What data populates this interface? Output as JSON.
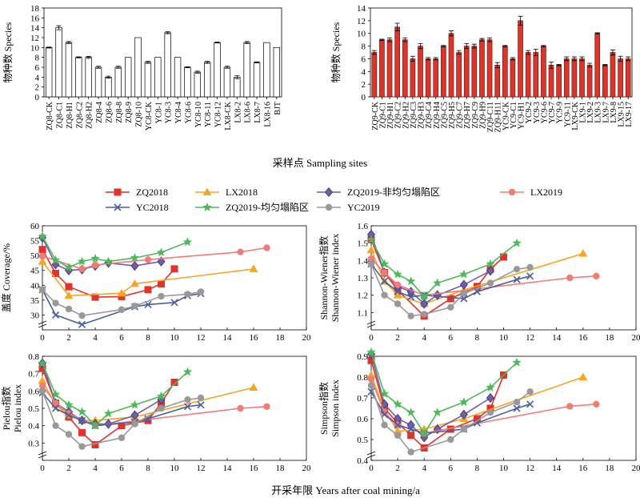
{
  "figure": {
    "sampling_title": "采样点 Sampling sites",
    "years_title": "开采年限 Years after coal mining/a"
  },
  "colors": {
    "ZQ2018": "#e23229",
    "LX2018": "#f5a623",
    "ZQ2019": "#6f5fa8",
    "LX2019": "#f07c78",
    "YC2018": "#4a5fa0",
    "ZQ2019_even": "#4fb85a",
    "YC2019": "#999999",
    "bar_red": "#d9362b"
  },
  "legend": [
    {
      "key": "ZQ2018",
      "label": "ZQ2018",
      "marker": "square"
    },
    {
      "key": "LX2018",
      "label": "LX2018",
      "marker": "triangle"
    },
    {
      "key": "ZQ2019",
      "label": "ZQ2019-非均匀塌陷区",
      "marker": "diamond"
    },
    {
      "key": "LX2019",
      "label": "LX2019",
      "marker": "circle"
    },
    {
      "key": "YC2018",
      "label": "YC2018",
      "marker": "x"
    },
    {
      "key": "ZQ2019_even",
      "label": "ZQ2019-均匀塌陷区",
      "marker": "star"
    },
    {
      "key": "YC2019",
      "label": "YC2019",
      "marker": "circle"
    }
  ],
  "chart_data": [
    {
      "type": "bar",
      "id": "bar2018",
      "ylabel": "物种数 Species",
      "ylim": [
        0,
        18
      ],
      "yticks": [
        0,
        2,
        4,
        6,
        8,
        10,
        12,
        14,
        16,
        18
      ],
      "fill": "white",
      "categories": [
        "ZQ8-CK",
        "ZQ8-C1",
        "ZQ8-H1",
        "ZQ8-C2",
        "ZQ8-H2",
        "ZQ8-4",
        "ZQ8-6",
        "ZQ8-8",
        "ZQ8-9",
        "ZQ8-10",
        "YC8-CK",
        "YC8-1",
        "YC8-3",
        "YC8-4",
        "YC8-6",
        "YC8-10",
        "YC8-11",
        "YC8-12",
        "LX8-CK",
        "LX8-2",
        "LX8-6",
        "LX8-7",
        "LX8-16",
        "BJT"
      ],
      "values": [
        10,
        14,
        11,
        8,
        8,
        6,
        4,
        6,
        8,
        12,
        7,
        8,
        13,
        8,
        6,
        5,
        7,
        11,
        6,
        4,
        11,
        7,
        11,
        10
      ],
      "errors": [
        0.1,
        0.4,
        0.2,
        0.1,
        0.2,
        0.2,
        0.2,
        0.2,
        0,
        0,
        0.2,
        0,
        0.2,
        0,
        0.1,
        0.2,
        0.2,
        0.1,
        0.2,
        0.3,
        0.2,
        0.1,
        0,
        0
      ]
    },
    {
      "type": "bar",
      "id": "bar2019",
      "ylabel": "物种数 Species",
      "ylim": [
        0,
        14
      ],
      "yticks": [
        0,
        2,
        4,
        6,
        8,
        10,
        12,
        14
      ],
      "fill": "red",
      "categories": [
        "ZQ9-CK",
        "ZQ9-C1",
        "ZQ9-H1",
        "ZQ9-C2",
        "ZQ9-H2",
        "ZQ9-C3",
        "ZQ9-H3",
        "ZQ9-C4",
        "ZQ9-H4",
        "ZQ9-C5",
        "ZQ9-H5",
        "ZQ9-C7",
        "ZQ9-H7",
        "ZQ9-C9",
        "ZQ9-H9",
        "ZQ9-C11",
        "ZQ9-H11",
        "YC9-CK",
        "YC9-C1",
        "YC9-H1",
        "YC9-2",
        "YC9-3",
        "YC9-6",
        "YC9-7",
        "YC9-9",
        "YC9-11",
        "LX9-CK",
        "LX9-1",
        "LX9-2",
        "LX9-3",
        "LX9-7",
        "LX9-8",
        "LX9-15",
        "LX9-17"
      ],
      "values": [
        7,
        9,
        9,
        11,
        9,
        6,
        8,
        6,
        6,
        8,
        10,
        7,
        8,
        8,
        9,
        9,
        5,
        8,
        6,
        12,
        7,
        7,
        8,
        5,
        5,
        6,
        6,
        6,
        5,
        10,
        5,
        7,
        6,
        6
      ],
      "errors": [
        0.3,
        0.1,
        0.3,
        0.6,
        0.3,
        0.4,
        0.4,
        0.2,
        0.2,
        0.1,
        0.4,
        0.3,
        0.4,
        0.3,
        0.2,
        0.3,
        0.4,
        0.1,
        0.2,
        0.7,
        0.3,
        0.5,
        0.1,
        0.5,
        0.1,
        0.3,
        0.3,
        0.3,
        0.3,
        0.1,
        0.1,
        0.4,
        0.4,
        0.3
      ]
    },
    {
      "type": "line",
      "id": "coverage",
      "ylabel": "盖度 Coverage/%",
      "ylim": [
        25,
        60
      ],
      "yticks": [
        30,
        35,
        40,
        45,
        50,
        55,
        60
      ],
      "xlim": [
        0,
        20
      ],
      "xticks": [
        0,
        2,
        4,
        6,
        8,
        10,
        12,
        14,
        16,
        18,
        20
      ],
      "series": [
        {
          "key": "ZQ2018",
          "x": [
            0,
            1,
            2,
            4,
            6,
            8,
            9,
            10
          ],
          "y": [
            52,
            44,
            39.5,
            36,
            36.2,
            38.5,
            40.5,
            45.5
          ]
        },
        {
          "key": "LX2018",
          "x": [
            0,
            2,
            6,
            7,
            16
          ],
          "y": [
            48,
            36.5,
            37.3,
            40.5,
            45.5
          ]
        },
        {
          "key": "ZQ2019",
          "x": [
            0,
            1,
            2,
            3,
            4,
            5,
            7,
            9
          ],
          "y": [
            56,
            47,
            45,
            45.3,
            46.5,
            47.5,
            46.5,
            48
          ]
        },
        {
          "key": "LX2019",
          "x": [
            0,
            3,
            4,
            8,
            15,
            17
          ],
          "y": [
            49.8,
            45.5,
            46.8,
            48.6,
            51.2,
            52.6
          ]
        },
        {
          "key": "YC2018",
          "x": [
            0,
            1,
            3,
            7,
            8,
            10,
            11,
            12
          ],
          "y": [
            38.5,
            30,
            26.8,
            32.8,
            33.5,
            34.2,
            36.5,
            37.2
          ]
        },
        {
          "key": "ZQ2019_even",
          "x": [
            0,
            1,
            2,
            3,
            4,
            5,
            7,
            9,
            11
          ],
          "y": [
            56.5,
            48.5,
            46,
            48,
            49,
            48,
            49.2,
            51,
            54.5
          ]
        },
        {
          "key": "YC2019",
          "x": [
            0,
            1,
            2,
            3,
            6,
            7,
            9,
            11,
            12
          ],
          "y": [
            38.5,
            34,
            32,
            29.8,
            31.8,
            33,
            36.3,
            37,
            37.8
          ]
        }
      ]
    },
    {
      "type": "line",
      "id": "shannon",
      "ylabel": "Shannon-Wiener指数 Shannon-Wiener index",
      "ylim": [
        1.0,
        1.6
      ],
      "yticks": [
        1.1,
        1.2,
        1.3,
        1.4,
        1.5,
        1.6
      ],
      "xlim": [
        0,
        20
      ],
      "xticks": [
        0,
        2,
        4,
        6,
        8,
        10,
        12,
        14,
        16,
        18,
        20
      ],
      "series": [
        {
          "key": "ZQ2018",
          "x": [
            0,
            1,
            2,
            4,
            6,
            8,
            9,
            10
          ],
          "y": [
            1.52,
            1.33,
            1.23,
            1.08,
            1.18,
            1.25,
            1.35,
            1.42
          ]
        },
        {
          "key": "LX2018",
          "x": [
            0,
            1,
            2,
            4,
            7,
            16
          ],
          "y": [
            1.46,
            1.28,
            1.2,
            1.15,
            1.23,
            1.44
          ]
        },
        {
          "key": "ZQ2019",
          "x": [
            0,
            1,
            2,
            3,
            4,
            5,
            7,
            9
          ],
          "y": [
            1.55,
            1.33,
            1.25,
            1.22,
            1.15,
            1.2,
            1.26,
            1.34
          ]
        },
        {
          "key": "LX2019",
          "x": [
            0,
            1,
            2,
            4,
            15,
            17
          ],
          "y": [
            1.41,
            1.33,
            1.26,
            1.2,
            1.3,
            1.31
          ]
        },
        {
          "key": "YC2018",
          "x": [
            0,
            1,
            2,
            3,
            4,
            7,
            8,
            11,
            12
          ],
          "y": [
            1.38,
            1.28,
            1.22,
            1.19,
            1.2,
            1.18,
            1.22,
            1.29,
            1.31
          ]
        },
        {
          "key": "ZQ2019_even",
          "x": [
            0,
            1,
            2,
            3,
            4,
            5,
            7,
            9,
            11
          ],
          "y": [
            1.52,
            1.38,
            1.32,
            1.28,
            1.19,
            1.27,
            1.32,
            1.38,
            1.5
          ]
        },
        {
          "key": "YC2019",
          "x": [
            0,
            1,
            2,
            3,
            4,
            6,
            7,
            9,
            11,
            12
          ],
          "y": [
            1.38,
            1.2,
            1.15,
            1.08,
            1.09,
            1.13,
            1.21,
            1.27,
            1.35,
            1.36
          ]
        }
      ]
    },
    {
      "type": "line",
      "id": "pielou",
      "ylabel": "Pielou指数 Pielou index",
      "ylim": [
        0.2,
        0.8
      ],
      "yticks": [
        0.3,
        0.4,
        0.5,
        0.6,
        0.7,
        0.8
      ],
      "xlim": [
        0,
        20
      ],
      "xticks": [
        0,
        2,
        4,
        6,
        8,
        10,
        12,
        14,
        16,
        18,
        20
      ],
      "series": [
        {
          "key": "ZQ2018",
          "x": [
            0,
            1,
            2,
            3,
            4,
            6,
            8,
            9,
            10
          ],
          "y": [
            0.73,
            0.53,
            0.45,
            0.36,
            0.29,
            0.4,
            0.43,
            0.53,
            0.65
          ]
        },
        {
          "key": "LX2018",
          "x": [
            0,
            1,
            2,
            3,
            4,
            7,
            16
          ],
          "y": [
            0.66,
            0.52,
            0.46,
            0.43,
            0.43,
            0.45,
            0.62
          ]
        },
        {
          "key": "ZQ2019",
          "x": [
            0,
            1,
            2,
            3,
            4,
            5,
            7,
            9
          ],
          "y": [
            0.76,
            0.53,
            0.48,
            0.43,
            0.41,
            0.41,
            0.46,
            0.55
          ]
        },
        {
          "key": "LX2019",
          "x": [
            0,
            1,
            2,
            4,
            15,
            17
          ],
          "y": [
            0.63,
            0.53,
            0.47,
            0.4,
            0.5,
            0.51
          ]
        },
        {
          "key": "YC2018",
          "x": [
            0,
            1,
            2,
            3,
            4,
            7,
            8,
            11,
            12
          ],
          "y": [
            0.59,
            0.5,
            0.46,
            0.43,
            0.4,
            0.42,
            0.44,
            0.51,
            0.52
          ]
        },
        {
          "key": "ZQ2019_even",
          "x": [
            0,
            1,
            2,
            3,
            4,
            5,
            7,
            9,
            11
          ],
          "y": [
            0.76,
            0.58,
            0.52,
            0.48,
            0.4,
            0.47,
            0.52,
            0.57,
            0.71
          ]
        },
        {
          "key": "YC2019",
          "x": [
            0,
            1,
            2,
            3,
            6,
            7,
            9,
            11,
            12
          ],
          "y": [
            0.6,
            0.4,
            0.35,
            0.28,
            0.33,
            0.41,
            0.5,
            0.55,
            0.56
          ]
        }
      ]
    },
    {
      "type": "line",
      "id": "simpson",
      "ylabel": "Simpson指数 Simpson index",
      "ylim": [
        0.4,
        0.9
      ],
      "yticks": [
        0.4,
        0.5,
        0.6,
        0.7,
        0.8,
        0.9
      ],
      "xlim": [
        0,
        20
      ],
      "xticks": [
        0,
        2,
        4,
        6,
        8,
        10,
        12,
        14,
        16,
        18,
        20
      ],
      "series": [
        {
          "key": "ZQ2018",
          "x": [
            0,
            1,
            2,
            3,
            4,
            6,
            8,
            9,
            10
          ],
          "y": [
            0.88,
            0.65,
            0.58,
            0.52,
            0.46,
            0.55,
            0.6,
            0.65,
            0.81
          ]
        },
        {
          "key": "LX2018",
          "x": [
            0,
            1,
            2,
            4,
            7,
            16
          ],
          "y": [
            0.81,
            0.64,
            0.54,
            0.55,
            0.6,
            0.8
          ]
        },
        {
          "key": "ZQ2019",
          "x": [
            0,
            1,
            2,
            3,
            4,
            5,
            7,
            9
          ],
          "y": [
            0.91,
            0.67,
            0.6,
            0.57,
            0.51,
            0.55,
            0.62,
            0.7
          ]
        },
        {
          "key": "LX2019",
          "x": [
            0,
            1,
            2,
            4,
            15,
            17
          ],
          "y": [
            0.79,
            0.63,
            0.57,
            0.53,
            0.66,
            0.67
          ]
        },
        {
          "key": "YC2018",
          "x": [
            0,
            1,
            2,
            3,
            4,
            7,
            8,
            11,
            12
          ],
          "y": [
            0.73,
            0.62,
            0.57,
            0.55,
            0.53,
            0.55,
            0.58,
            0.65,
            0.67
          ]
        },
        {
          "key": "ZQ2019_even",
          "x": [
            0,
            1,
            2,
            3,
            4,
            5,
            7,
            9,
            11
          ],
          "y": [
            0.92,
            0.72,
            0.67,
            0.63,
            0.53,
            0.63,
            0.68,
            0.75,
            0.87
          ]
        },
        {
          "key": "YC2019",
          "x": [
            0,
            1,
            2,
            3,
            6,
            7,
            9,
            11,
            12
          ],
          "y": [
            0.76,
            0.57,
            0.52,
            0.44,
            0.5,
            0.55,
            0.63,
            0.68,
            0.73
          ]
        }
      ]
    }
  ]
}
